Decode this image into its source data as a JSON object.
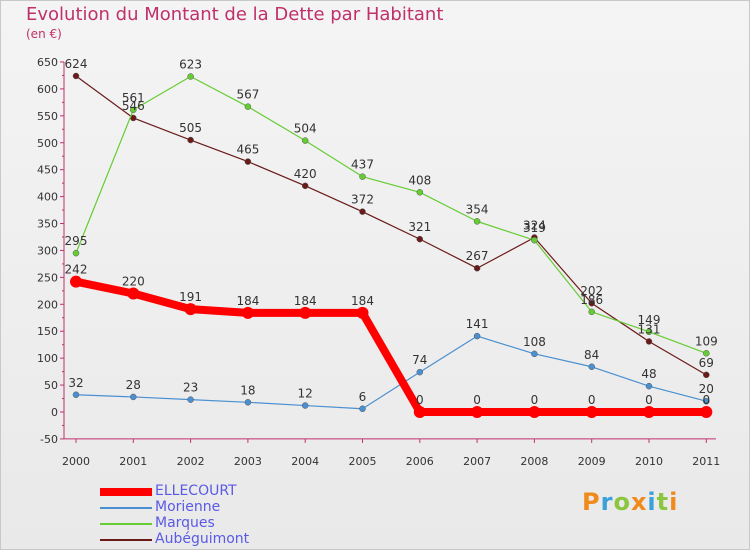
{
  "title": "Evolution du Montant de la Dette par Habitant",
  "subtitle": "(en €)",
  "logo_text": "Proxiti",
  "chart_data": {
    "type": "line",
    "title": "Evolution du Montant de la Dette par Habitant",
    "subtitle": "(en €)",
    "categories": [
      "2000",
      "2001",
      "2002",
      "2003",
      "2004",
      "2005",
      "2006",
      "2007",
      "2008",
      "2009",
      "2010",
      "2011"
    ],
    "ylim": [
      -50,
      650
    ],
    "yticks": [
      -50,
      0,
      50,
      100,
      150,
      200,
      250,
      300,
      350,
      400,
      450,
      500,
      550,
      600,
      650
    ],
    "grid": false,
    "legend_position": "bottom-left",
    "series": [
      {
        "name": "ELLECOURT",
        "color": "#ff0000",
        "values": [
          242,
          220,
          191,
          184,
          184,
          184,
          0,
          0,
          0,
          0,
          0,
          0
        ]
      },
      {
        "name": "Morienne",
        "color": "#4a90d0",
        "values": [
          32,
          28,
          23,
          18,
          12,
          6,
          74,
          141,
          108,
          84,
          48,
          20
        ]
      },
      {
        "name": "Marques",
        "color": "#66cc33",
        "values": [
          295,
          561,
          623,
          567,
          504,
          437,
          408,
          354,
          319,
          186,
          149,
          109
        ]
      },
      {
        "name": "Aubéguimont",
        "color": "#6b1a1a",
        "values": [
          624,
          546,
          505,
          465,
          420,
          372,
          321,
          267,
          324,
          202,
          131,
          69
        ]
      }
    ]
  }
}
